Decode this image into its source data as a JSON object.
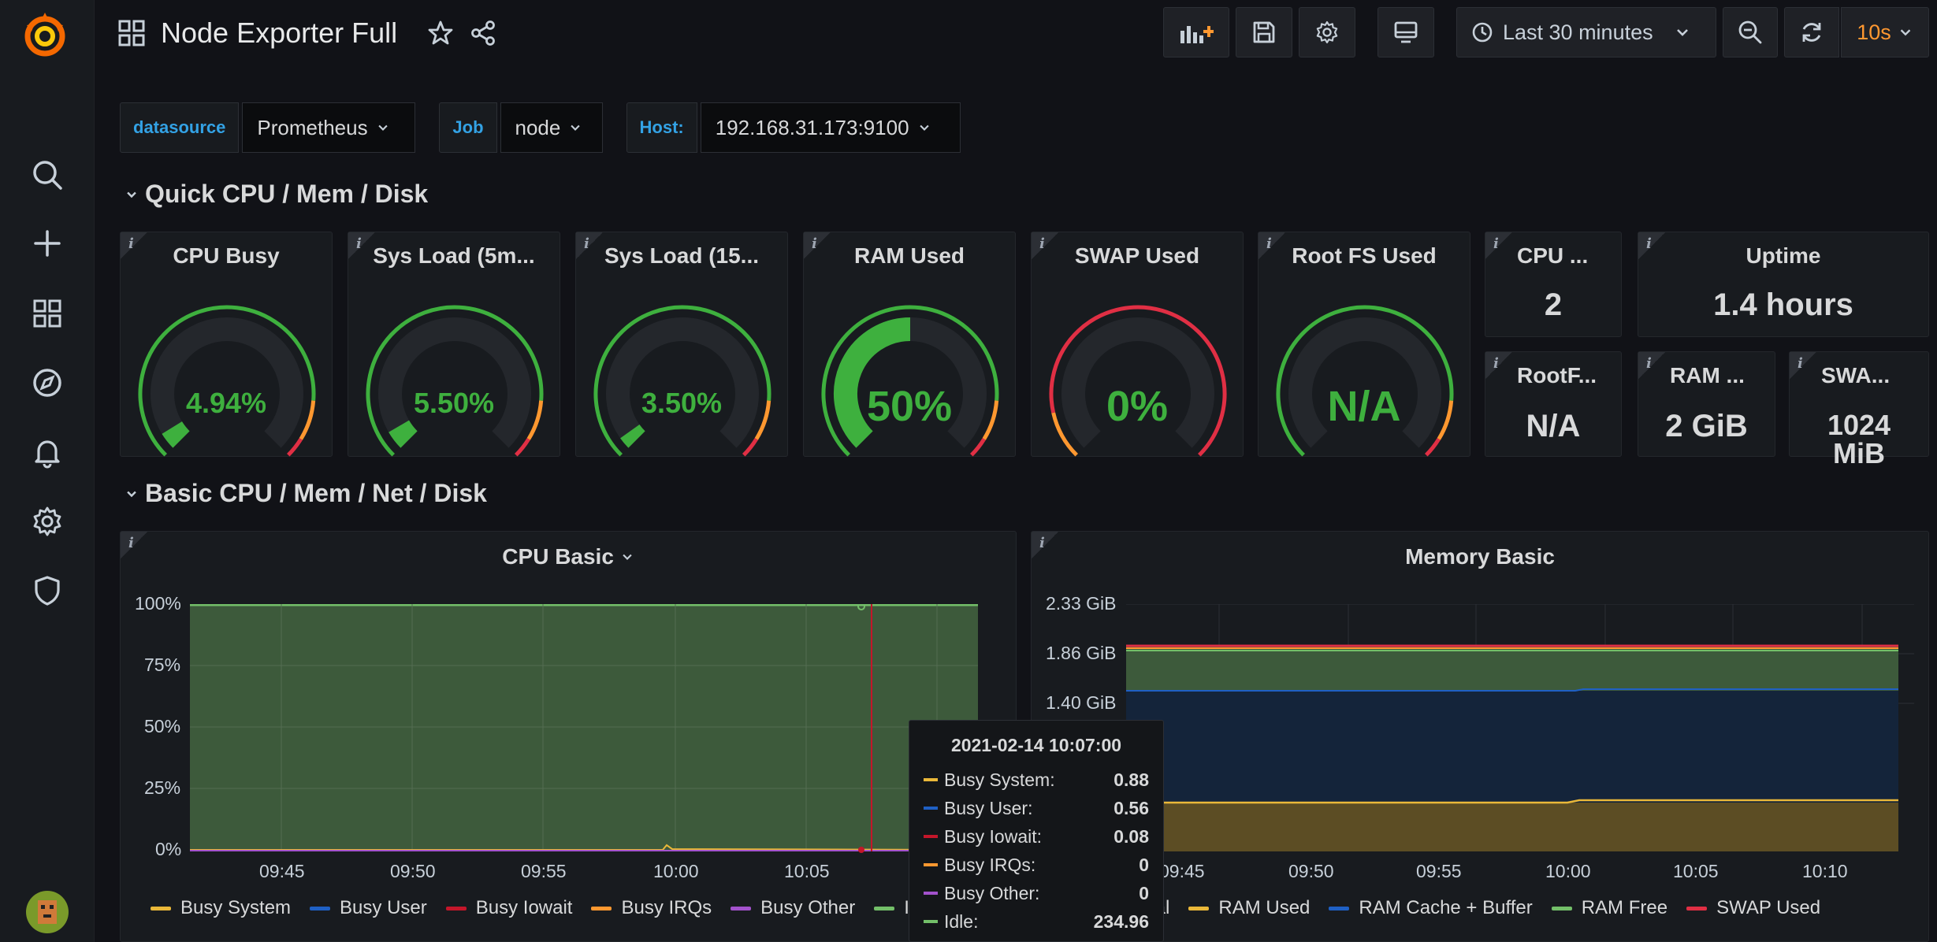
{
  "app": {
    "title": "Node Exporter Full"
  },
  "sidebar": {
    "items": [
      {
        "name": "search-icon"
      },
      {
        "name": "plus-icon"
      },
      {
        "name": "dashboards-icon"
      },
      {
        "name": "explore-icon"
      },
      {
        "name": "alerting-icon"
      },
      {
        "name": "settings-icon"
      },
      {
        "name": "shield-icon"
      }
    ]
  },
  "toolbar": {
    "time_range": "Last 30 minutes",
    "refresh_interval": "10s"
  },
  "variables": [
    {
      "label": "datasource",
      "value": "Prometheus"
    },
    {
      "label": "Job",
      "value": "node"
    },
    {
      "label": "Host:",
      "value": "192.168.31.173:9100"
    }
  ],
  "rows": {
    "quick": "Quick CPU / Mem / Disk",
    "basic": "Basic CPU / Mem / Net / Disk"
  },
  "gauges": [
    {
      "title": "CPU Busy",
      "value": "4.94%",
      "fraction": 0.0494
    },
    {
      "title": "Sys Load (5m...",
      "value": "5.50%",
      "fraction": 0.055
    },
    {
      "title": "Sys Load (15...",
      "value": "3.50%",
      "fraction": 0.035
    },
    {
      "title": "RAM Used",
      "value": "50%",
      "fraction": 0.5
    },
    {
      "title": "SWAP Used",
      "value": "0%",
      "fraction": 0
    },
    {
      "title": "Root FS Used",
      "value": "N/A",
      "fraction": 0
    }
  ],
  "stats": {
    "cpu_cores": {
      "title": "CPU ...",
      "value": "2"
    },
    "uptime": {
      "title": "Uptime",
      "value": "1.4 hours"
    },
    "rootfs": {
      "title": "RootF...",
      "value": "N/A"
    },
    "ram": {
      "title": "RAM ...",
      "value": "2 GiB"
    },
    "swap": {
      "title": "SWA...",
      "value_line1": "1024",
      "value_line2": "MiB"
    }
  },
  "cpu_panel": {
    "title": "CPU Basic",
    "y_ticks": [
      "100%",
      "75%",
      "50%",
      "25%",
      "0%"
    ],
    "x_ticks": [
      "09:45",
      "09:50",
      "09:55",
      "10:00",
      "10:05"
    ],
    "legend": [
      {
        "name": "Busy System",
        "color": "#eab839"
      },
      {
        "name": "Busy User",
        "color": "#1f60c4"
      },
      {
        "name": "Busy Iowait",
        "color": "#c4162a"
      },
      {
        "name": "Busy IRQs",
        "color": "#ff9830"
      },
      {
        "name": "Busy Other",
        "color": "#a352cc"
      },
      {
        "name": "Idle",
        "color": "#73bf69"
      }
    ],
    "legend_cut": "Id"
  },
  "mem_panel": {
    "title": "Memory Basic",
    "y_ticks": [
      "2.33 GiB",
      "1.86 GiB",
      "1.40 GiB"
    ],
    "x_ticks": [
      "09:45",
      "09:50",
      "09:55",
      "10:00",
      "10:05",
      "10:10"
    ],
    "legend": [
      {
        "name": "RAM Used",
        "color": "#eab839"
      },
      {
        "name": "RAM Cache + Buffer",
        "color": "#1f60c4"
      },
      {
        "name": "RAM Free",
        "color": "#73bf69"
      },
      {
        "name": "SWAP Used",
        "color": "#e02f44"
      }
    ],
    "legend_cut": "tal"
  },
  "tooltip": {
    "time": "2021-02-14 10:07:00",
    "rows": [
      {
        "name": "Busy System:",
        "value": "0.88",
        "color": "#eab839"
      },
      {
        "name": "Busy User:",
        "value": "0.56",
        "color": "#1f60c4"
      },
      {
        "name": "Busy Iowait:",
        "value": "0.08",
        "color": "#c4162a"
      },
      {
        "name": "Busy IRQs:",
        "value": "0",
        "color": "#ff9830"
      },
      {
        "name": "Busy Other:",
        "value": "0",
        "color": "#a352cc"
      },
      {
        "name": "Idle:",
        "value": "234.96",
        "color": "#73bf69"
      }
    ]
  }
}
